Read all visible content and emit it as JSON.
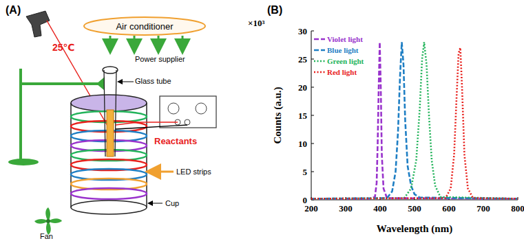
{
  "panel_a": {
    "label": "(A)",
    "temperature": "25℃",
    "air_conditioner": "Air conditioner",
    "power_supplier": "Power supplier",
    "glass_tube": "Glass tube",
    "reactants": "Reactants",
    "led_strips": "LED strips",
    "cup": "Cup",
    "fan": "Fan"
  },
  "chart_data": {
    "type": "line",
    "title": "(B)",
    "x_label": "Wavelength (nm)",
    "y_label": "Counts (a.u.)",
    "annotations": [
      "×10³"
    ],
    "xlim": [
      200,
      800
    ],
    "xticks": [
      200,
      300,
      400,
      500,
      600,
      700,
      800
    ],
    "ylim": [
      0,
      30
    ],
    "yticks": [
      0,
      5,
      10,
      15,
      20,
      25,
      30
    ],
    "grid": false,
    "legend": "upper left",
    "series": [
      {
        "name": "Violet light",
        "color": "#9933cc",
        "line_style": "dashed",
        "x": [
          200,
          370,
          385,
          390,
          393,
          396,
          399,
          402,
          405,
          410,
          420,
          800
        ],
        "values": [
          0.2,
          0.2,
          0.5,
          3,
          10,
          20,
          28,
          20,
          8,
          2,
          0.3,
          0.2
        ]
      },
      {
        "name": "Blue light",
        "color": "#1f7fc4",
        "line_style": "dashed",
        "x": [
          200,
          420,
          435,
          445,
          452,
          458,
          463,
          468,
          473,
          480,
          490,
          500,
          515,
          800
        ],
        "values": [
          0.2,
          0.3,
          1.5,
          5,
          12,
          22,
          28,
          24,
          14,
          6,
          2.5,
          1,
          0.4,
          0.2
        ]
      },
      {
        "name": "Green light",
        "color": "#22b35a",
        "line_style": "dotted",
        "x": [
          200,
          470,
          490,
          505,
          515,
          522,
          528,
          535,
          542,
          550,
          560,
          575,
          800
        ],
        "values": [
          0.2,
          0.3,
          2,
          7,
          16,
          25,
          28,
          24,
          15,
          7,
          2.5,
          0.5,
          0.2
        ]
      },
      {
        "name": "Red light",
        "color": "#e8201c",
        "line_style": "dotted",
        "x": [
          200,
          590,
          605,
          615,
          622,
          628,
          633,
          638,
          645,
          655,
          670,
          800
        ],
        "values": [
          0.2,
          0.3,
          2,
          8,
          18,
          26,
          27,
          20,
          8,
          2,
          0.3,
          0.2
        ]
      }
    ]
  }
}
